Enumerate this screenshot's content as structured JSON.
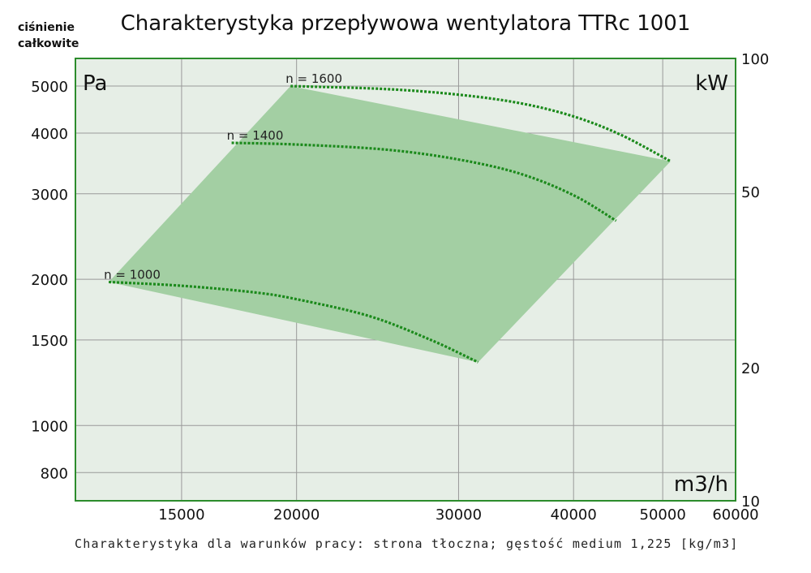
{
  "chart_data": {
    "type": "line",
    "title": "Charakterystyka przepływowa wentylatora TTRc 1001",
    "ylabel_line1": "ciśnienie",
    "ylabel_line2": "całkowite",
    "y_unit": "Pa",
    "y2_unit": "kW",
    "x_unit": "m3/h",
    "x_scale": "log",
    "y_scale": "log",
    "y2_scale": "log",
    "xlim": [
      11500,
      60000
    ],
    "ylim": [
      700,
      5700
    ],
    "y2lim": [
      10,
      100
    ],
    "x_ticks": [
      15000,
      20000,
      30000,
      40000,
      50000,
      60000
    ],
    "x_tick_labels": [
      "15000",
      "20000",
      "30000",
      "40000",
      "50000",
      "60000"
    ],
    "y_ticks": [
      800,
      1000,
      1500,
      2000,
      3000,
      4000,
      5000
    ],
    "y_tick_labels": [
      "800",
      "1000",
      "1500",
      "2000",
      "3000",
      "4000",
      "5000"
    ],
    "y2_ticks": [
      10,
      20,
      50,
      100
    ],
    "y2_tick_labels": [
      "10",
      "20",
      "50",
      "100"
    ],
    "grid": true,
    "operating_region": [
      [
        12500,
        1975
      ],
      [
        19700,
        5000
      ],
      [
        51000,
        3500
      ],
      [
        31500,
        1350
      ]
    ],
    "series": [
      {
        "name": "n = 1000",
        "x": [
          12500,
          15000,
          18000,
          20000,
          24000,
          28000,
          31500
        ],
        "y": [
          1975,
          1940,
          1880,
          1820,
          1680,
          1500,
          1350
        ]
      },
      {
        "name": "n = 1400",
        "x": [
          17000,
          20000,
          25000,
          30000,
          35000,
          40000,
          44500
        ],
        "y": [
          3820,
          3790,
          3700,
          3530,
          3300,
          2980,
          2640
        ]
      },
      {
        "name": "n = 1600",
        "x": [
          19700,
          25000,
          30000,
          35000,
          40000,
          45000,
          51000
        ],
        "y": [
          5000,
          4930,
          4800,
          4610,
          4330,
          3970,
          3500
        ]
      }
    ]
  },
  "footnote": "Charakterystyka dla warunków pracy: strona tłoczna; gęstość medium 1,225 [kg/m3]",
  "colors": {
    "plot_background": "#e6eee6",
    "operating_region": "#a3cfa3",
    "curve": "#1c8a1c",
    "frame": "#2c8c2c",
    "grid": "#999999"
  }
}
